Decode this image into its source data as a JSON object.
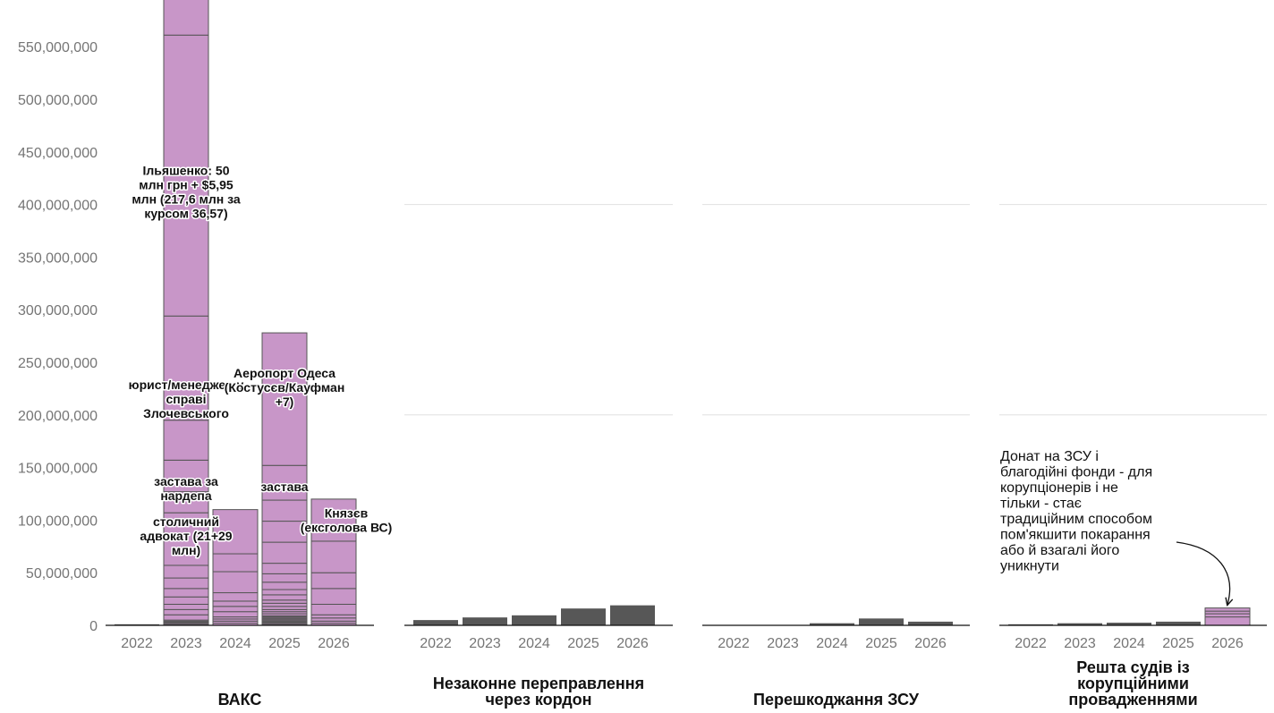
{
  "chart_data": {
    "type": "bar",
    "stacked": true,
    "y_axis": {
      "ylim": [
        0,
        600000000
      ],
      "ticks": [
        {
          "value": 0,
          "label": "0"
        },
        {
          "value": 50000000,
          "label": "50,000,000"
        },
        {
          "value": 100000000,
          "label": "100,000,000"
        },
        {
          "value": 150000000,
          "label": "150,000,000"
        },
        {
          "value": 200000000,
          "label": "200,000,000"
        },
        {
          "value": 250000000,
          "label": "250,000,000"
        },
        {
          "value": 300000000,
          "label": "300,000,000"
        },
        {
          "value": 350000000,
          "label": "350,000,000"
        },
        {
          "value": 400000000,
          "label": "400,000,000"
        },
        {
          "value": 450000000,
          "label": "450,000,000"
        },
        {
          "value": 500000000,
          "label": "500,000,000"
        },
        {
          "value": 550000000,
          "label": "550,000,000"
        }
      ]
    },
    "grid": true,
    "categories": [
      "2022",
      "2023",
      "2024",
      "2025",
      "2026"
    ],
    "colors": {
      "highlight": "#c896c8",
      "other": "#575757",
      "segment_stroke": "#555555",
      "grid": "#e0e0e0"
    },
    "panels": [
      {
        "title": "ВАКС",
        "bars": [
          {
            "year": "2022",
            "color": "other",
            "segments": [
              1000000
            ]
          },
          {
            "year": "2023",
            "color": "highlight",
            "segments": [
              1000000,
              1000000,
              1000000,
              1000000,
              1000000,
              5000000,
              5000000,
              5000000,
              7000000,
              8000000,
              10000000,
              12000000,
              50000000,
              20000000,
              30000000,
              38000000,
              99000000,
              267000000,
              80000000
            ]
          },
          {
            "year": "2024",
            "color": "highlight",
            "segments": [
              2000000,
              2000000,
              2000000,
              2000000,
              5000000,
              5000000,
              5000000,
              8000000,
              20000000,
              17000000,
              42000000
            ]
          },
          {
            "year": "2025",
            "color": "highlight",
            "segments": [
              1000000,
              1000000,
              1000000,
              1000000,
              1000000,
              1000000,
              1000000,
              1000000,
              1000000,
              2000000,
              2000000,
              2000000,
              3000000,
              3000000,
              3000000,
              5000000,
              5000000,
              7000000,
              8000000,
              10000000,
              20000000,
              20000000,
              20000000,
              33000000,
              126000000
            ]
          },
          {
            "year": "2026",
            "color": "highlight",
            "segments": [
              2000000,
              2000000,
              3000000,
              3000000,
              10000000,
              15000000,
              15000000,
              30000000,
              40000000
            ]
          }
        ],
        "annotations": [
          {
            "text_lines": [
              "Ільяшенко: 50",
              "млн грн + $5,95",
              "млн (217,6 млн за",
              "курсом 36,57)"
            ],
            "year": "2023",
            "y": 412000000
          },
          {
            "text_lines": [
              "юрист/менеджер у",
              "справі",
              "Злочевського"
            ],
            "year": "2023",
            "y": 215000000
          },
          {
            "text_lines": [
              "застава за",
              "нардепа"
            ],
            "year": "2023",
            "y": 130000000
          },
          {
            "text_lines": [
              "столичний",
              "адвокат (21+29",
              "млн)"
            ],
            "year": "2023",
            "y": 85000000
          },
          {
            "text_lines": [
              "Аеропорт Одеса",
              "(Костусєв/Кауфман",
              "+7)"
            ],
            "year": "2025",
            "y": 226000000
          },
          {
            "text_lines": [
              "застава"
            ],
            "year": "2025",
            "y": 132000000
          },
          {
            "text_lines": [
              "Князєв",
              "(ексголова ВС)"
            ],
            "year": "2026",
            "y": 100000000,
            "offset": 1
          }
        ]
      },
      {
        "title": "Незаконне переправлення через кордон",
        "bars": [
          {
            "year": "2022",
            "color": "other",
            "segments": [
              5000000
            ]
          },
          {
            "year": "2023",
            "color": "other",
            "segments": [
              7500000
            ]
          },
          {
            "year": "2024",
            "color": "other",
            "segments": [
              9500000
            ]
          },
          {
            "year": "2025",
            "color": "other",
            "segments": [
              16000000
            ]
          },
          {
            "year": "2026",
            "color": "other",
            "segments": [
              19000000
            ]
          }
        ],
        "annotations": []
      },
      {
        "title": "Перешкоджання ЗСУ",
        "bars": [
          {
            "year": "2022",
            "color": "other",
            "segments": [
              300000
            ]
          },
          {
            "year": "2023",
            "color": "other",
            "segments": [
              300000
            ]
          },
          {
            "year": "2024",
            "color": "other",
            "segments": [
              2000000
            ]
          },
          {
            "year": "2025",
            "color": "other",
            "segments": [
              6500000
            ]
          },
          {
            "year": "2026",
            "color": "other",
            "segments": [
              3500000
            ]
          }
        ],
        "annotations": []
      },
      {
        "title": "Решта судів із корупційними провадженнями",
        "bars": [
          {
            "year": "2022",
            "color": "other",
            "segments": [
              1000000
            ]
          },
          {
            "year": "2023",
            "color": "other",
            "segments": [
              2000000
            ]
          },
          {
            "year": "2024",
            "color": "other",
            "segments": [
              2500000
            ]
          },
          {
            "year": "2025",
            "color": "other",
            "segments": [
              3500000
            ]
          },
          {
            "year": "2026",
            "color": "highlight",
            "segments": [
              8000000,
              3000000,
              2500000,
              3000000
            ]
          }
        ],
        "note": {
          "text_lines": [
            "Донат на ЗСУ і",
            "благодійні фонди - для",
            "корупціонерів і не",
            "тільки - стає",
            "традиційним способом",
            "пом'якшити покарання",
            "або й взагалі його",
            "уникнути"
          ],
          "points_to": "2026"
        },
        "annotations": []
      }
    ]
  }
}
